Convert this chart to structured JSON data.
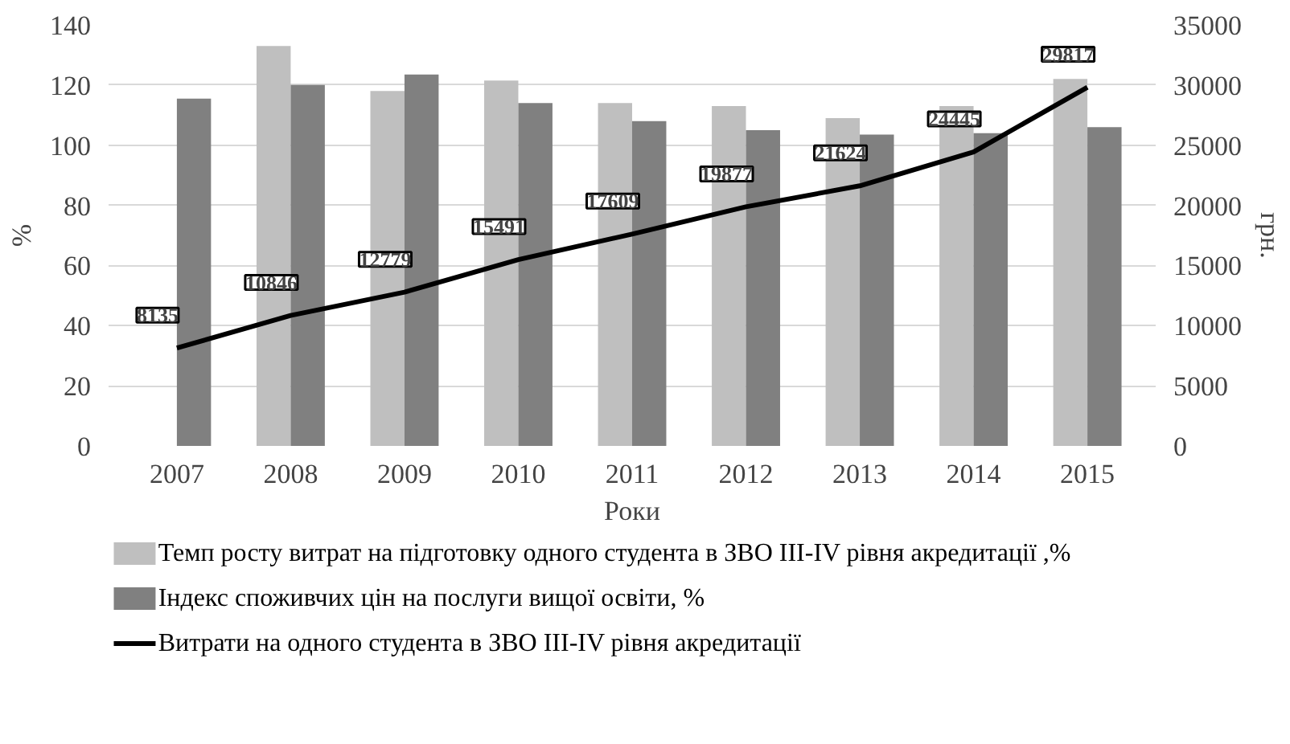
{
  "chart_data": {
    "type": "bar",
    "categories": [
      "2007",
      "2008",
      "2009",
      "2010",
      "2011",
      "2012",
      "2013",
      "2014",
      "2015"
    ],
    "series": [
      {
        "name": "Темп росту витрат на підготовку одного студента в ЗВО ІІІ-IV рівня акредитації ,%",
        "color": "#bfbfbf",
        "values": [
          null,
          133,
          118,
          121.5,
          114,
          113,
          109,
          113,
          122
        ]
      },
      {
        "name": "Індекс споживчих цін на послуги вищої освіти, %",
        "color": "#808080",
        "values": [
          115.5,
          120,
          123.5,
          114,
          108,
          105,
          103.5,
          104,
          106
        ]
      },
      {
        "name": "Витрати на одного студента в ЗВО ІІІ-IV рівня акредитації",
        "type": "line",
        "axis": "y2",
        "color": "#000000",
        "data_labels": true,
        "values": [
          8135,
          10846,
          12779,
          15491,
          17609,
          19877,
          21624,
          24445,
          29817
        ]
      }
    ],
    "xlabel": "Роки",
    "ylabel": "%",
    "y2label": "грн.",
    "ylim": [
      0,
      140
    ],
    "yticks": [
      0,
      20,
      40,
      60,
      80,
      100,
      120,
      140
    ],
    "y2lim": [
      0,
      35000
    ],
    "y2ticks": [
      0,
      5000,
      10000,
      15000,
      20000,
      25000,
      30000,
      35000
    ],
    "grid": "y",
    "legend": "bottom"
  }
}
